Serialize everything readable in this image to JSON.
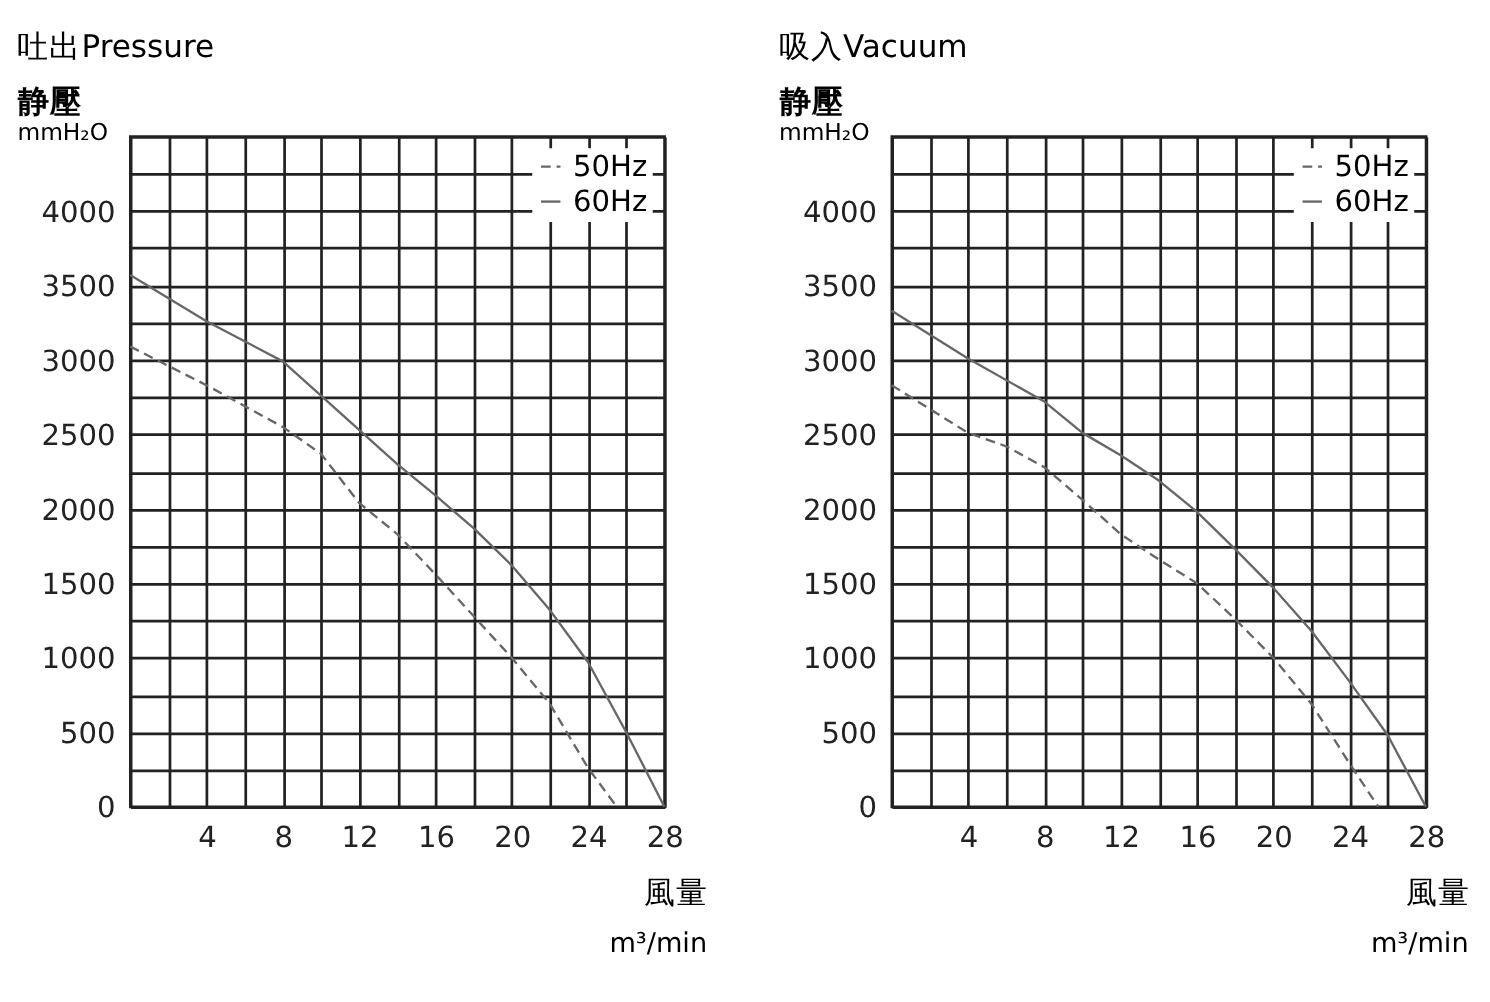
{
  "chart_data": [
    {
      "type": "line",
      "title": "吐出Pressure",
      "xlabel": "風量",
      "ylabel": "静壓",
      "annotations": [
        "mmH₂O",
        "m³/min"
      ],
      "xlim": [
        0,
        28
      ],
      "ylim": [
        0,
        4500
      ],
      "xticks": [
        {
          "value": 0,
          "label": null
        },
        {
          "value": 2,
          "label": null
        },
        4,
        {
          "value": 6,
          "label": null
        },
        8,
        {
          "value": 10,
          "label": null
        },
        12,
        {
          "value": 14,
          "label": null
        },
        16,
        {
          "value": 18,
          "label": null
        },
        20,
        {
          "value": 22,
          "label": null
        },
        24,
        {
          "value": 26,
          "label": null
        },
        28
      ],
      "yticks": [
        0,
        {
          "value": 250,
          "label": null
        },
        500,
        {
          "value": 750,
          "label": null
        },
        1000,
        {
          "value": 1250,
          "label": null
        },
        1500,
        {
          "value": 1750,
          "label": null
        },
        2000,
        {
          "value": 2250,
          "label": null
        },
        2500,
        {
          "value": 2750,
          "label": null
        },
        3000,
        {
          "value": 3250,
          "label": null
        },
        3500,
        {
          "value": 3750,
          "label": null
        },
        4000,
        {
          "value": 4250,
          "label": null
        },
        {
          "value": 4500,
          "label": null
        }
      ],
      "grid": true,
      "legend": "top right",
      "series": [
        {
          "name": "50Hz",
          "color": "#666666",
          "line_style": "dashed",
          "x": [
            0,
            4,
            8,
            10,
            12,
            14,
            16,
            18,
            20,
            22,
            24,
            25.5
          ],
          "values": [
            3090,
            2830,
            2550,
            2370,
            2040,
            1830,
            1560,
            1280,
            1000,
            690,
            260,
            0
          ]
        },
        {
          "name": "60Hz",
          "color": "#666666",
          "line_style": "solid",
          "x": [
            0,
            4,
            8,
            10,
            12,
            14,
            16,
            18,
            20,
            22,
            24,
            26,
            28
          ],
          "values": [
            3570,
            3260,
            2990,
            2760,
            2530,
            2300,
            2090,
            1870,
            1620,
            1320,
            970,
            500,
            0
          ]
        }
      ]
    },
    {
      "type": "line",
      "title": "吸入Vacuum",
      "xlabel": "風量",
      "ylabel": "静壓",
      "annotations": [
        "mmH₂O",
        "m³/min"
      ],
      "xlim": [
        0,
        28
      ],
      "ylim": [
        0,
        4500
      ],
      "xticks": [
        {
          "value": 0,
          "label": null
        },
        {
          "value": 2,
          "label": null
        },
        4,
        {
          "value": 6,
          "label": null
        },
        8,
        {
          "value": 10,
          "label": null
        },
        12,
        {
          "value": 14,
          "label": null
        },
        16,
        {
          "value": 18,
          "label": null
        },
        20,
        {
          "value": 22,
          "label": null
        },
        24,
        {
          "value": 26,
          "label": null
        },
        28
      ],
      "yticks": [
        0,
        {
          "value": 250,
          "label": null
        },
        500,
        {
          "value": 750,
          "label": null
        },
        1000,
        {
          "value": 1250,
          "label": null
        },
        1500,
        {
          "value": 1750,
          "label": null
        },
        2000,
        {
          "value": 2250,
          "label": null
        },
        2500,
        {
          "value": 2750,
          "label": null
        },
        3000,
        {
          "value": 3250,
          "label": null
        },
        3500,
        {
          "value": 3750,
          "label": null
        },
        4000,
        {
          "value": 4250,
          "label": null
        },
        {
          "value": 4500,
          "label": null
        }
      ],
      "grid": true,
      "legend": "top right",
      "series": [
        {
          "name": "50Hz",
          "color": "#666666",
          "line_style": "dashed",
          "x": [
            0,
            4,
            6,
            8,
            10,
            12,
            14,
            16,
            18,
            20,
            22,
            24,
            25.5
          ],
          "values": [
            2830,
            2510,
            2420,
            2280,
            2060,
            1830,
            1660,
            1500,
            1260,
            1000,
            690,
            290,
            0
          ]
        },
        {
          "name": "60Hz",
          "color": "#666666",
          "line_style": "solid",
          "x": [
            0,
            4,
            8,
            10,
            12,
            14,
            16,
            18,
            20,
            22,
            24,
            26,
            28
          ],
          "values": [
            3330,
            3010,
            2720,
            2510,
            2360,
            2190,
            1980,
            1730,
            1470,
            1180,
            840,
            480,
            0
          ]
        }
      ]
    }
  ]
}
